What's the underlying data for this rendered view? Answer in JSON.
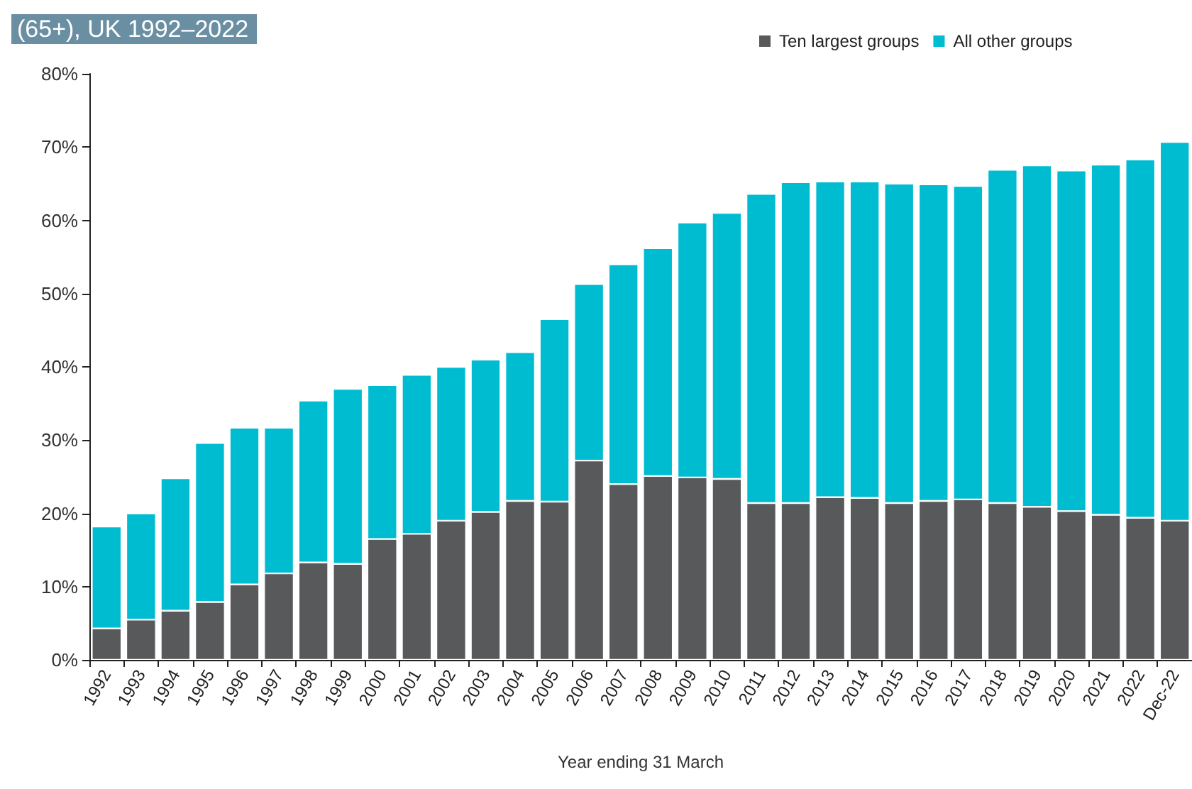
{
  "chart_data": {
    "type": "bar",
    "title": "(65+), UK 1992–2022",
    "xlabel": "Year ending 31 March",
    "stacked": true,
    "legend": "top",
    "grid": false,
    "categories": [
      "1992",
      "1993",
      "1994",
      "1995",
      "1996",
      "1997",
      "1998",
      "1999",
      "2000",
      "2001",
      "2002",
      "2003",
      "2004",
      "2005",
      "2006",
      "2007",
      "2008",
      "2009",
      "2010",
      "2011",
      "2012",
      "2013",
      "2014",
      "2015",
      "2016",
      "2017",
      "2018",
      "2019",
      "2020",
      "2021",
      "2022",
      "Dec-22"
    ],
    "series": [
      {
        "name": "Ten largest groups",
        "color": "#58595b",
        "values": [
          4.3,
          5.5,
          6.7,
          7.9,
          10.3,
          11.8,
          13.3,
          13.1,
          16.5,
          17.2,
          19.0,
          20.2,
          21.7,
          21.6,
          27.2,
          24.0,
          25.1,
          24.9,
          24.7,
          21.4,
          21.4,
          22.2,
          22.1,
          21.4,
          21.7,
          21.9,
          21.4,
          20.9,
          20.3,
          19.8,
          19.4,
          19.0
        ]
      },
      {
        "name": "All other groups",
        "color": "#00bcd1",
        "values": [
          13.9,
          14.5,
          18.1,
          21.7,
          21.4,
          19.9,
          22.1,
          23.9,
          21.0,
          21.7,
          21.0,
          20.8,
          20.3,
          24.9,
          24.1,
          30.0,
          31.1,
          34.8,
          36.3,
          42.2,
          43.8,
          43.1,
          43.2,
          43.6,
          43.2,
          42.8,
          45.5,
          46.6,
          46.5,
          47.8,
          48.9,
          51.7
        ]
      }
    ],
    "ylim": [
      0,
      80
    ],
    "yticks": [
      {
        "value": 0,
        "label": "0%"
      },
      {
        "value": 10,
        "label": "10%"
      },
      {
        "value": 20,
        "label": "20%"
      },
      {
        "value": 30,
        "label": "30%"
      },
      {
        "value": 40,
        "label": "40%"
      },
      {
        "value": 50,
        "label": "50%"
      },
      {
        "value": 60,
        "label": "60%"
      },
      {
        "value": 70,
        "label": "70%"
      },
      {
        "value": 80,
        "label": "80%"
      }
    ]
  }
}
